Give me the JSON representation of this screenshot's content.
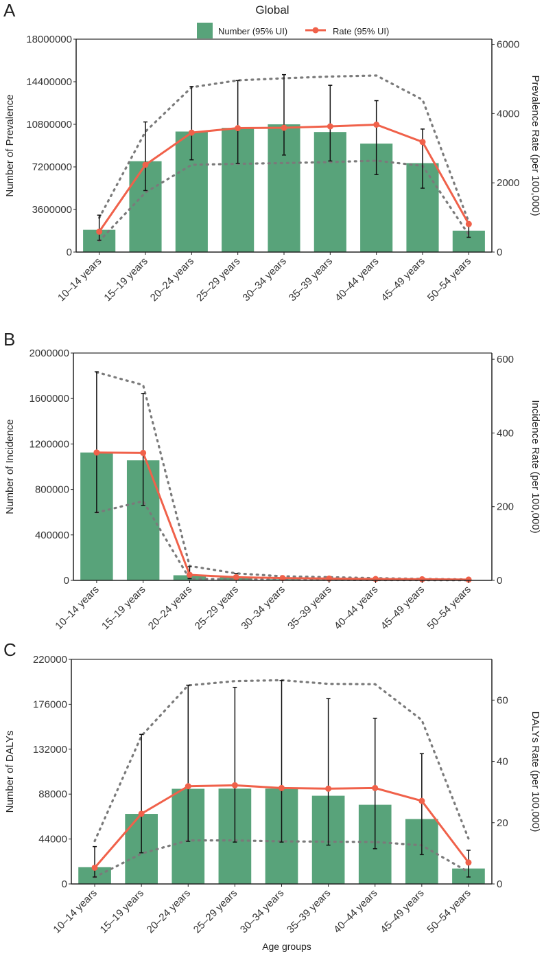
{
  "title": "Global",
  "legend": {
    "number_label": "Number (95% UI)",
    "rate_label": "Rate (95% UI)"
  },
  "colors": {
    "bar": "#58a37a",
    "rate_line": "#f0614a",
    "ui_dotted": "#7a7a7a",
    "error_bar": "#111111"
  },
  "xlabel": "Age groups",
  "chart_data": [
    {
      "panel": "A",
      "type": "bar+line",
      "categories": [
        "10–14 years",
        "15–19 years",
        "20–24 years",
        "25–29 years",
        "30–34 years",
        "35–39 years",
        "40–44 years",
        "45–49 years",
        "50–54 years"
      ],
      "ylabel": "Number of Prevalence",
      "y2label": "Prevalence Rate (per 100,000)",
      "ylim": [
        0,
        18000000
      ],
      "yticks": [
        "0",
        "3600000",
        "7200000",
        "10800000",
        "14400000",
        "18000000"
      ],
      "y2lim": [
        0,
        6150
      ],
      "y2ticks": [
        "0",
        "2000",
        "4000",
        "6000"
      ],
      "number": [
        1880000,
        7680000,
        10190000,
        10500000,
        10800000,
        10150000,
        9170000,
        7520000,
        1810000
      ],
      "number_lower": [
        1000000,
        5200000,
        7800000,
        7500000,
        8200000,
        7700000,
        6550000,
        5400000,
        1250000
      ],
      "number_upper": [
        3120000,
        11000000,
        14000000,
        14500000,
        15000000,
        14100000,
        12800000,
        10400000,
        2400000
      ],
      "rate": [
        590,
        2520,
        3450,
        3580,
        3590,
        3630,
        3680,
        3180,
        810
      ],
      "rate_lower": [
        320,
        1720,
        2520,
        2550,
        2570,
        2600,
        2640,
        2490,
        500
      ],
      "rate_upper": [
        990,
        3480,
        4760,
        4960,
        5020,
        5070,
        5100,
        4400,
        870
      ]
    },
    {
      "panel": "B",
      "type": "bar+line",
      "categories": [
        "10–14 years",
        "15–19 years",
        "20–24 years",
        "25–29 years",
        "30–34 years",
        "35–39 years",
        "40–44 years",
        "45–49 years",
        "50–54 years"
      ],
      "ylabel": "Number of Incidence",
      "y2label": "Incidence Rate (per 100,000)",
      "ylim": [
        0,
        2000000
      ],
      "yticks": [
        "0",
        "400000",
        "800000",
        "1200000",
        "1600000",
        "2000000"
      ],
      "y2lim": [
        0,
        617
      ],
      "y2ticks": [
        "0",
        "200",
        "400",
        "600"
      ],
      "number": [
        1125000,
        1056000,
        45000,
        28000,
        10000,
        7000,
        5000,
        3000,
        2000
      ],
      "number_lower": [
        597000,
        658000,
        15000,
        10000,
        4000,
        3000,
        2000,
        1000,
        500
      ],
      "number_upper": [
        1835000,
        1645000,
        120000,
        60000,
        25000,
        18000,
        12000,
        7000,
        4000
      ],
      "rate": [
        347,
        346,
        15,
        8.7,
        6.2,
        5,
        3.7,
        3,
        2
      ],
      "rate_lower": [
        184,
        215,
        4.4,
        2.5,
        2,
        1.5,
        1,
        0.8,
        0.5
      ],
      "rate_upper": [
        565,
        530,
        39,
        19,
        11,
        8.7,
        6,
        4,
        2.5
      ]
    },
    {
      "panel": "C",
      "type": "bar+line",
      "categories": [
        "10–14 years",
        "15–19 years",
        "20–24 years",
        "25–29 years",
        "30–34 years",
        "35–39 years",
        "40–44 years",
        "45–49 years",
        "50–54 years"
      ],
      "ylabel": "Number of DALYs",
      "y2label": "DALYs Rate (per 100,000)",
      "ylim": [
        0,
        220000
      ],
      "yticks": [
        "0",
        "44000",
        "88000",
        "132000",
        "176000",
        "220000"
      ],
      "y2lim": [
        0,
        73.3
      ],
      "y2ticks": [
        "0",
        "20",
        "40",
        "60"
      ],
      "number": [
        16500,
        68600,
        93200,
        93400,
        93400,
        86400,
        77600,
        63600,
        15100
      ],
      "number_lower": [
        6800,
        30500,
        41700,
        41000,
        41000,
        38000,
        34500,
        28700,
        6800
      ],
      "number_upper": [
        36600,
        146500,
        194700,
        192600,
        199300,
        181600,
        162300,
        127600,
        33000
      ],
      "rate": [
        5.3,
        22.9,
        31.9,
        32.2,
        31.3,
        31.1,
        31.3,
        27.1,
        7.0
      ],
      "rate_lower": [
        2.2,
        9.9,
        14.2,
        14.2,
        13.9,
        13.8,
        13.7,
        12.6,
        3.9
      ],
      "rate_upper": [
        14,
        48.3,
        64.8,
        66.2,
        66.5,
        65.3,
        65.2,
        53.5,
        14.8
      ]
    }
  ]
}
